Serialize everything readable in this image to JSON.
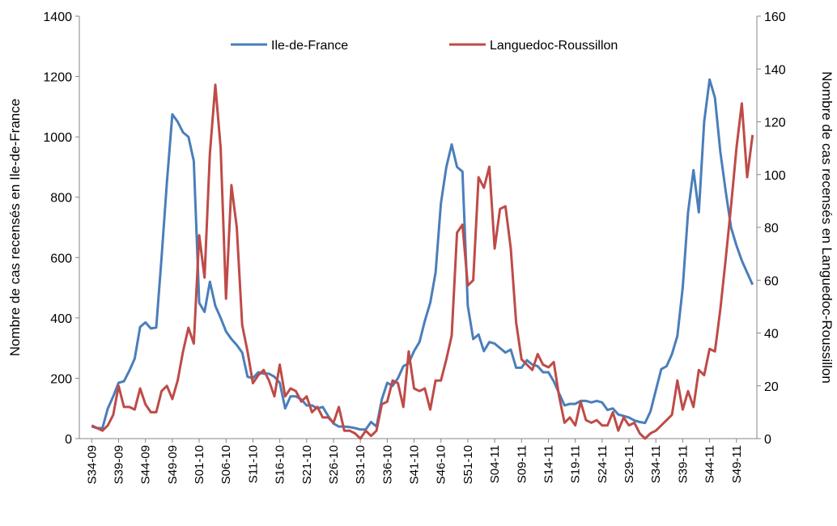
{
  "chart_data": {
    "type": "line",
    "y_label": "Nombre de cas recensés en Ile-de-France",
    "y2_label": "Nombre de cas recensés en Languedoc-Roussillon",
    "categories": [
      "S34-09",
      null,
      null,
      null,
      null,
      "S39-09",
      null,
      null,
      null,
      null,
      "S44-09",
      null,
      null,
      null,
      null,
      "S49-09",
      null,
      null,
      null,
      null,
      "S01-10",
      null,
      null,
      null,
      null,
      "S06-10",
      null,
      null,
      null,
      null,
      "S11-10",
      null,
      null,
      null,
      null,
      "S16-10",
      null,
      null,
      null,
      null,
      "S21-10",
      null,
      null,
      null,
      null,
      "S26-10",
      null,
      null,
      null,
      null,
      "S31-10",
      null,
      null,
      null,
      null,
      "S36-10",
      null,
      null,
      null,
      null,
      "S41-10",
      null,
      null,
      null,
      null,
      "S46-10",
      null,
      null,
      null,
      null,
      "S51-10",
      null,
      null,
      null,
      null,
      "S04-11",
      null,
      null,
      null,
      null,
      "S09-11",
      null,
      null,
      null,
      null,
      "S14-11",
      null,
      null,
      null,
      null,
      "S19-11",
      null,
      null,
      null,
      null,
      "S24-11",
      null,
      null,
      null,
      null,
      "S29-11",
      null,
      null,
      null,
      null,
      "S34-11",
      null,
      null,
      null,
      null,
      "S39-11",
      null,
      null,
      null,
      null,
      "S44-11",
      null,
      null,
      null,
      null,
      "S49-11",
      null,
      null,
      null
    ],
    "series": [
      {
        "name": "Ile-de-France",
        "color": "#4a7ebb",
        "axis": "y",
        "values": [
          40,
          35,
          35,
          100,
          140,
          185,
          190,
          225,
          265,
          370,
          385,
          365,
          368,
          600,
          850,
          1075,
          1050,
          1015,
          1000,
          920,
          450,
          420,
          520,
          440,
          400,
          355,
          330,
          310,
          285,
          205,
          200,
          220,
          215,
          215,
          205,
          185,
          100,
          140,
          140,
          130,
          110,
          110,
          100,
          105,
          75,
          50,
          40,
          40,
          38,
          35,
          30,
          30,
          55,
          40,
          130,
          185,
          175,
          200,
          240,
          250,
          290,
          320,
          390,
          450,
          550,
          780,
          900,
          975,
          900,
          885,
          440,
          330,
          345,
          290,
          320,
          315,
          300,
          285,
          295,
          235,
          235,
          260,
          245,
          240,
          220,
          220,
          190,
          150,
          110,
          115,
          115,
          125,
          125,
          120,
          125,
          120,
          95,
          100,
          80,
          75,
          70,
          60,
          55,
          52,
          90,
          160,
          230,
          240,
          280,
          340,
          500,
          750,
          890,
          750,
          1050,
          1190,
          1130,
          950,
          820,
          700,
          640,
          590,
          550,
          510
        ]
      },
      {
        "name": "Languedoc-Roussillon",
        "color": "#be4b48",
        "axis": "y2",
        "values": [
          5,
          4,
          3,
          5,
          9,
          20,
          12,
          12,
          11,
          19,
          13,
          10,
          10,
          18,
          20,
          15,
          22,
          33,
          42,
          36,
          77,
          61,
          108,
          134,
          110,
          53,
          96,
          80,
          43,
          33,
          21,
          24,
          26,
          22,
          16,
          28,
          16,
          19,
          18,
          14,
          16,
          10,
          12,
          8,
          8,
          6,
          12,
          3,
          3,
          2,
          0,
          3,
          1,
          3,
          13,
          14,
          22,
          21,
          12,
          33,
          19,
          18,
          19,
          11,
          22,
          22,
          30,
          39,
          78,
          81,
          58,
          60,
          99,
          95,
          103,
          72,
          87,
          88,
          72,
          44,
          30,
          28,
          26,
          32,
          28,
          27,
          29,
          16,
          6,
          8,
          5,
          14,
          7,
          6,
          7,
          5,
          5,
          10,
          3,
          8,
          5,
          6,
          2,
          0,
          2,
          3,
          5,
          7,
          9,
          22,
          11,
          18,
          12,
          26,
          24,
          34,
          33,
          49,
          68,
          88,
          110,
          127,
          99,
          115
        ]
      }
    ],
    "ylim": [
      0,
      1400
    ],
    "yticks": [
      0,
      200,
      400,
      600,
      800,
      1000,
      1200,
      1400
    ],
    "y2lim": [
      0,
      160
    ],
    "y2ticks": [
      0,
      20,
      40,
      60,
      80,
      100,
      120,
      140,
      160
    ],
    "grid": false,
    "legend": "top"
  }
}
